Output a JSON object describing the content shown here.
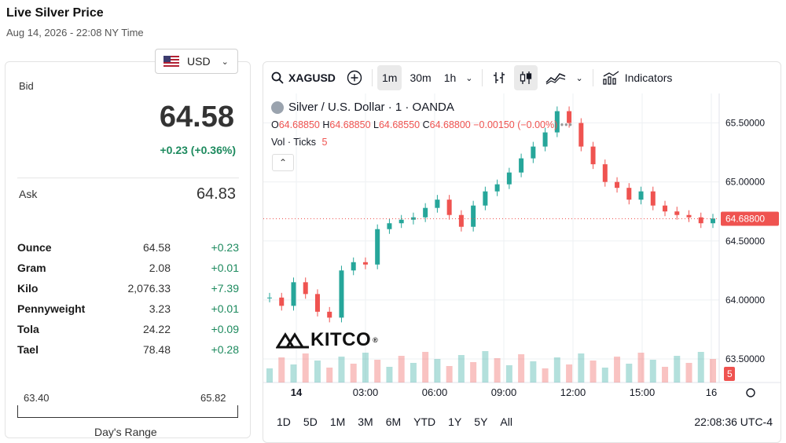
{
  "page": {
    "title": "Live Silver Price",
    "date": "Aug 14, 2026 - 22:08 NY Time"
  },
  "currency": {
    "selected": "USD",
    "flag_icon": "us-flag-icon"
  },
  "quote": {
    "bid_label": "Bid",
    "bid": "64.58",
    "change": "+0.23 (+0.36%)",
    "ask_label": "Ask",
    "ask": "64.83",
    "up_color": "#1d8a5e"
  },
  "units": [
    {
      "name": "Ounce",
      "price": "64.58",
      "change": "+0.23"
    },
    {
      "name": "Gram",
      "price": "2.08",
      "change": "+0.01"
    },
    {
      "name": "Kilo",
      "price": "2,076.33",
      "change": "+7.39"
    },
    {
      "name": "Pennyweight",
      "price": "3.23",
      "change": "+0.01"
    },
    {
      "name": "Tola",
      "price": "24.22",
      "change": "+0.09"
    },
    {
      "name": "Tael",
      "price": "78.48",
      "change": "+0.28"
    }
  ],
  "day_range": {
    "low": "63.40",
    "high": "65.82",
    "label": "Day's Range"
  },
  "toolbar": {
    "symbol": "XAGUSD",
    "intervals": [
      "1m",
      "30m",
      "1h"
    ],
    "active_interval": "1m",
    "indicators_label": "Indicators"
  },
  "legend": {
    "title": "Silver / U.S. Dollar · 1 · OANDA",
    "o_label": "O",
    "o": "64.68850",
    "h_label": "H",
    "h": "64.68850",
    "l_label": "L",
    "l": "64.68550",
    "c_label": "C",
    "c": "64.68800",
    "chg": "−0.00150 (−0.00%)",
    "vol_label": "Vol · Ticks",
    "vol": "5"
  },
  "logo": {
    "text": "KITCO",
    "mark": "®"
  },
  "chart_data": {
    "type": "line",
    "title": "Silver / U.S. Dollar · 1 · OANDA",
    "y_ticks": [
      "65.50000",
      "65.00000",
      "64.50000",
      "64.00000",
      "63.50000"
    ],
    "x_ticks": [
      "14",
      "03:00",
      "06:00",
      "09:00",
      "12:00",
      "15:00",
      "16"
    ],
    "ylim": [
      63.3,
      65.75
    ],
    "last_price_label": "64.68800",
    "last_volume_label": "5",
    "x": [
      "00:00",
      "00:30",
      "01:00",
      "01:30",
      "02:00",
      "02:30",
      "03:00",
      "03:30",
      "04:00",
      "04:30",
      "05:00",
      "05:30",
      "06:00",
      "06:30",
      "07:00",
      "07:30",
      "08:00",
      "08:30",
      "09:00",
      "09:30",
      "10:00",
      "10:30",
      "11:00",
      "11:30",
      "12:00",
      "12:30",
      "13:00",
      "13:30",
      "14:00",
      "14:30",
      "15:00",
      "15:30",
      "16:00",
      "16:30",
      "17:00",
      "17:30",
      "18:00",
      "18:15"
    ],
    "series": [
      {
        "values": [
          64.02,
          63.95,
          64.15,
          64.05,
          63.9,
          63.85,
          64.25,
          64.32,
          64.3,
          64.6,
          64.65,
          64.68,
          64.7,
          64.78,
          64.85,
          64.72,
          64.62,
          64.8,
          64.92,
          64.98,
          65.08,
          65.2,
          65.3,
          65.42,
          65.6,
          65.5,
          65.3,
          65.15,
          65.0,
          64.95,
          64.85,
          64.92,
          64.8,
          64.75,
          64.72,
          64.7,
          64.65,
          64.69
        ]
      }
    ],
    "grid": true
  },
  "time_ranges": [
    "1D",
    "5D",
    "1M",
    "3M",
    "6M",
    "YTD",
    "1Y",
    "5Y",
    "All"
  ],
  "clock": "22:08:36 UTC-4",
  "colors": {
    "up": "#26a69a",
    "down": "#ef5350",
    "last_price": "#ef5350"
  }
}
